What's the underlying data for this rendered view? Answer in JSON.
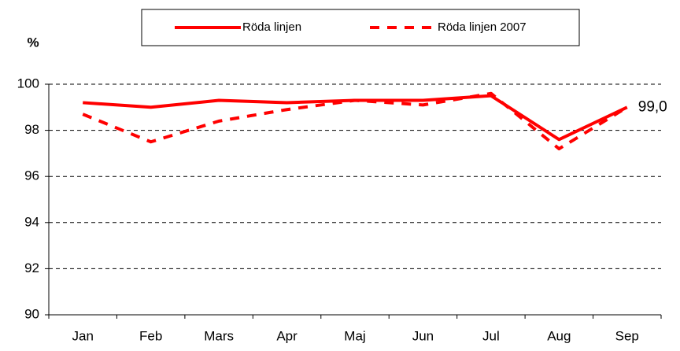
{
  "chart_data": {
    "type": "line",
    "y_label": "%",
    "categories": [
      "Jan",
      "Feb",
      "Mars",
      "Apr",
      "Maj",
      "Jun",
      "Jul",
      "Aug",
      "Sep"
    ],
    "series": [
      {
        "name": "Röda linjen",
        "color": "#ff0000",
        "dash": false,
        "values": [
          99.2,
          99.0,
          99.3,
          99.2,
          99.3,
          99.3,
          99.5,
          97.6,
          99.0
        ],
        "value_labels": [
          null,
          null,
          null,
          null,
          null,
          null,
          null,
          null,
          "99,0"
        ]
      },
      {
        "name": "Röda linjen 2007",
        "color": "#ff0000",
        "dash": true,
        "values": [
          98.7,
          97.5,
          98.4,
          98.9,
          99.3,
          99.1,
          99.6,
          97.2,
          99.0
        ]
      }
    ],
    "ylim": [
      90,
      100
    ],
    "yticks": [
      90,
      92,
      94,
      96,
      98,
      100
    ],
    "grid": true,
    "legend": "top"
  }
}
